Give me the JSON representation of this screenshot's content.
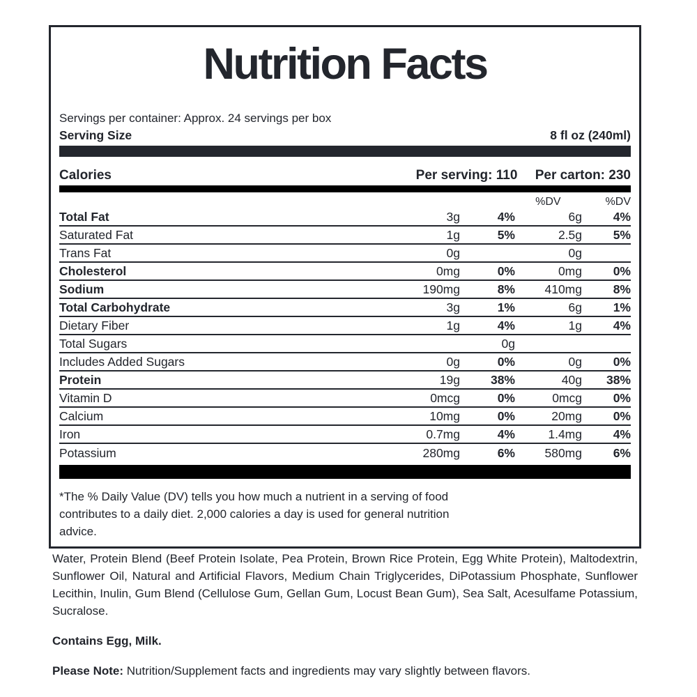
{
  "title": "Nutrition Facts",
  "servings_per_container": "Servings per container: Approx. 24 servings per box",
  "serving_size": {
    "label": "Serving Size",
    "value": "8 fl oz (240ml)"
  },
  "calories": {
    "label": "Calories",
    "per_serving": "Per serving: 110",
    "per_carton": "Per carton: 230"
  },
  "dv_header": {
    "col1": "%DV",
    "col2": "%DV"
  },
  "nutrients": [
    {
      "name": "Total Fat",
      "bold": true,
      "amt1": "3g",
      "pct1": "4%",
      "amt2": "6g",
      "pct2": "4%"
    },
    {
      "name": "Saturated Fat",
      "bold": false,
      "amt1": "1g",
      "pct1": "5%",
      "amt2": "2.5g",
      "pct2": "5%"
    },
    {
      "name": "Trans Fat",
      "bold": false,
      "amt1": "0g",
      "pct1": "",
      "amt2": "0g",
      "pct2": ""
    },
    {
      "name": "Cholesterol",
      "bold": true,
      "amt1": "0mg",
      "pct1": "0%",
      "amt2": "0mg",
      "pct2": "0%"
    },
    {
      "name": "Sodium",
      "bold": true,
      "amt1": "190mg",
      "pct1": "8%",
      "amt2": "410mg",
      "pct2": "8%"
    },
    {
      "name": "Total Carbohydrate",
      "bold": true,
      "amt1": "3g",
      "pct1": "1%",
      "amt2": "6g",
      "pct2": "1%"
    },
    {
      "name": "Dietary Fiber",
      "bold": false,
      "amt1": "1g",
      "pct1": "4%",
      "amt2": "1g",
      "pct2": "4%"
    },
    {
      "name": "Total Sugars",
      "bold": false,
      "amt1": "",
      "pct1": "0g",
      "amt2": "",
      "pct2": ""
    },
    {
      "name": "Includes Added Sugars",
      "bold": false,
      "amt1": "0g",
      "pct1": "0%",
      "amt2": "0g",
      "pct2": "0%"
    },
    {
      "name": "Protein",
      "bold": true,
      "amt1": "19g",
      "pct1": "38%",
      "amt2": "40g",
      "pct2": "38%"
    },
    {
      "name": "Vitamin D",
      "bold": false,
      "amt1": "0mcg",
      "pct1": "0%",
      "amt2": "0mcg",
      "pct2": "0%"
    },
    {
      "name": "Calcium",
      "bold": false,
      "amt1": "10mg",
      "pct1": "0%",
      "amt2": "20mg",
      "pct2": "0%"
    },
    {
      "name": "Iron",
      "bold": false,
      "amt1": "0.7mg",
      "pct1": "4%",
      "amt2": "1.4mg",
      "pct2": "4%"
    },
    {
      "name": "Potassium",
      "bold": false,
      "amt1": "280mg",
      "pct1": "6%",
      "amt2": "580mg",
      "pct2": "6%"
    }
  ],
  "footnote": "*The % Daily Value (DV) tells you how much a nutrient in a serving of food contributes to a daily diet. 2,000 calories a day is used for general nutrition advice.",
  "ingredients": "Water, Protein Blend (Beef Protein Isolate, Pea Protein, Brown Rice Protein, Egg White Protein), Maltodextrin, Sunflower Oil, Natural and Artificial Flavors, Medium Chain Triglycerides, DiPotassium Phosphate, Sunflower Lecithin, Inulin, Gum Blend (Cellulose Gum, Gellan Gum, Locust Bean Gum), Sea Salt, Acesulfame Potassium, Sucralose.",
  "contains": "Contains Egg, Milk.",
  "note_label": "Please Note:",
  "note_text": " Nutrition/Supplement facts and ingredients may vary slightly between flavors.",
  "colors": {
    "text": "#22252c",
    "divider_dark": "#23262d",
    "bar_black": "#000000",
    "background": "#ffffff"
  }
}
